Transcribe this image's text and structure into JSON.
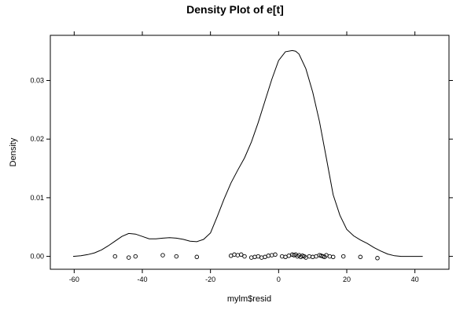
{
  "chart_data": {
    "type": "line",
    "title": "Density Plot of e[t]",
    "xlabel": "mylm$resid",
    "ylabel": "Density",
    "xlim": [
      -67,
      50
    ],
    "ylim": [
      -0.0022,
      0.0377
    ],
    "x_ticks": [
      -60,
      -40,
      -20,
      0,
      20,
      40
    ],
    "y_ticks": [
      0.0,
      0.01,
      0.02,
      0.03
    ],
    "x_tick_labels": [
      "-60",
      "-40",
      "-20",
      "0",
      "20",
      "40"
    ],
    "y_tick_labels": [
      "0.00",
      "0.01",
      "0.02",
      "0.03"
    ],
    "grid": false,
    "series": [
      {
        "x": [
          -60.3,
          -58,
          -56,
          -54,
          -52,
          -50,
          -48,
          -46,
          -44,
          -42,
          -40,
          -38,
          -36,
          -34,
          -32,
          -30,
          -28,
          -26,
          -24,
          -22,
          -20,
          -18,
          -16,
          -14,
          -12,
          -10,
          -8,
          -6,
          -4,
          -2,
          0,
          2,
          4,
          5,
          6,
          8,
          10,
          12,
          14,
          16,
          18,
          20,
          22,
          24,
          26,
          28,
          30,
          32,
          34,
          36,
          38,
          40,
          42.3
        ],
        "y": [
          0.0,
          0.0001,
          0.0003,
          0.0006,
          0.0011,
          0.0018,
          0.0026,
          0.0034,
          0.0039,
          0.0038,
          0.0034,
          0.003,
          0.003,
          0.0031,
          0.0032,
          0.0031,
          0.0029,
          0.0026,
          0.0025,
          0.0029,
          0.004,
          0.0068,
          0.0098,
          0.0125,
          0.0147,
          0.0168,
          0.0195,
          0.0228,
          0.0265,
          0.0302,
          0.0334,
          0.0349,
          0.0351,
          0.035,
          0.0345,
          0.032,
          0.028,
          0.023,
          0.0168,
          0.0105,
          0.007,
          0.0046,
          0.0035,
          0.0028,
          0.0022,
          0.0015,
          0.0009,
          0.0004,
          0.0001,
          0.0,
          0.0,
          0.0,
          0.0
        ]
      }
    ],
    "residual_points": {
      "x": [
        -48,
        -44,
        -42,
        -34,
        -30,
        -24,
        -14,
        -13,
        -12,
        -11,
        -10,
        -8,
        -7,
        -6,
        -5,
        -4,
        -3,
        -2,
        -1,
        1,
        2,
        3,
        4,
        4.5,
        5,
        5.5,
        6,
        6.5,
        7,
        7.5,
        8,
        9,
        10,
        11,
        12,
        12.5,
        13,
        13.5,
        14,
        15,
        16,
        19,
        24,
        29
      ],
      "y": [
        0.0,
        -0.0002,
        0.0,
        0.0002,
        0.0,
        -0.0001,
        0.0001,
        0.0003,
        0.0002,
        0.0003,
        0.0,
        -0.0002,
        -0.0001,
        0.0,
        -0.0002,
        -0.0001,
        0.0001,
        0.0002,
        0.0003,
        0.0,
        -0.0001,
        0.0001,
        0.0003,
        0.0002,
        0.0003,
        0.0,
        0.0002,
        -0.0001,
        0.0001,
        0.0,
        -0.0002,
        0.0,
        -0.0001,
        0.0,
        0.0002,
        0.0001,
        0.0,
        -0.0001,
        0.0002,
        0.0,
        -0.0001,
        0.0,
        -0.0001,
        -0.0003
      ]
    }
  }
}
